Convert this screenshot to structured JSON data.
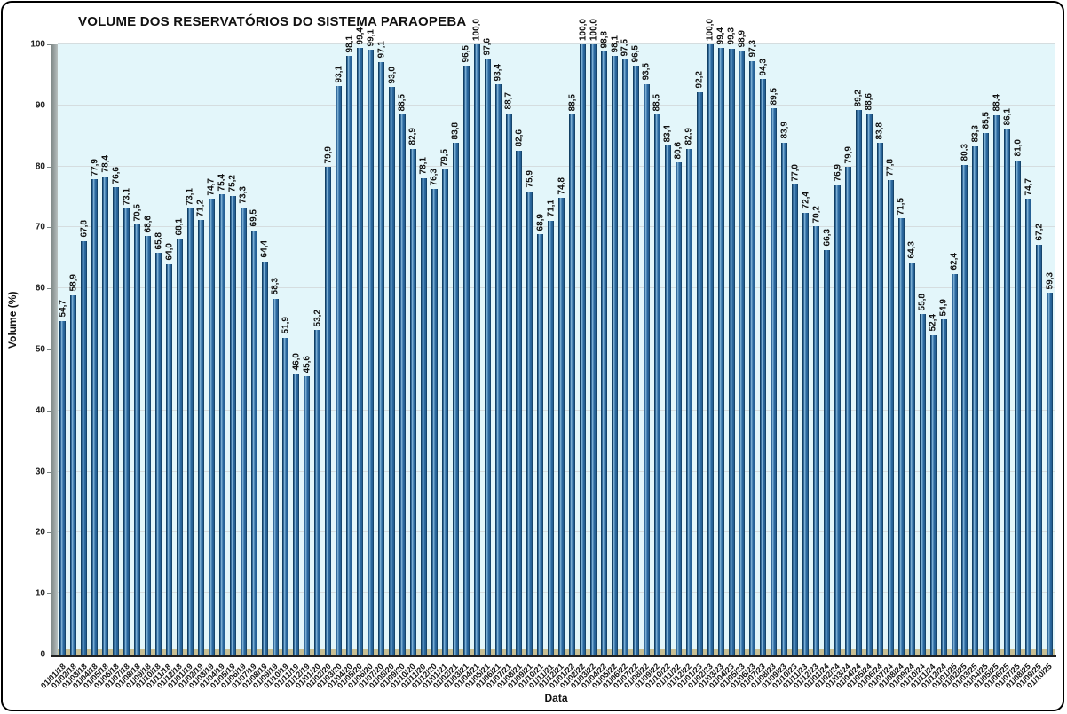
{
  "chart_data": {
    "type": "bar",
    "title": "VOLUME DOS RESERVATÓRIOS DO SISTEMA PARAOPEBA",
    "xlabel": "Data",
    "ylabel": "Volume (%)",
    "ylim": [
      0,
      100
    ],
    "ytick_step": 10,
    "grid": true,
    "decimal_separator": ",",
    "value_label_format": "one-decimal-comma",
    "bar_color": "#2E6DA4",
    "bar_edge_color": "#123F63",
    "plot_bg": "#E3F6FA",
    "outer_bg": "#FFFFFF",
    "gridline_color": "#D5DDDF",
    "wall_color": "#8E9897",
    "floor_color": "#C8BF93",
    "axis_line_color": "#1F1F1F",
    "categories": [
      "01/01/18",
      "01/02/18",
      "01/03/18",
      "01/04/18",
      "01/05/18",
      "01/06/18",
      "01/07/18",
      "01/08/18",
      "01/09/18",
      "01/10/18",
      "01/11/18",
      "01/12/18",
      "01/01/19",
      "01/02/19",
      "01/03/19",
      "01/04/19",
      "01/05/19",
      "01/06/19",
      "01/07/19",
      "01/08/19",
      "01/09/19",
      "01/10/19",
      "01/11/19",
      "01/12/19",
      "01/01/20",
      "01/02/20",
      "01/03/20",
      "01/04/20",
      "01/05/20",
      "01/06/20",
      "01/07/20",
      "01/08/20",
      "01/09/20",
      "01/10/20",
      "01/11/20",
      "01/12/20",
      "01/01/21",
      "01/02/21",
      "01/03/21",
      "01/04/21",
      "01/05/21",
      "01/06/21",
      "01/07/21",
      "01/08/21",
      "01/09/21",
      "01/10/21",
      "01/11/21",
      "01/12/21",
      "01/01/22",
      "01/02/22",
      "01/03/22",
      "01/04/22",
      "01/05/22",
      "01/06/22",
      "01/07/22",
      "01/08/22",
      "01/09/22",
      "01/10/22",
      "01/11/22",
      "01/12/22",
      "01/01/23",
      "01/02/23",
      "01/03/23",
      "01/04/23",
      "01/05/23",
      "01/06/23",
      "01/07/23",
      "01/08/23",
      "01/09/23",
      "01/10/23",
      "01/11/23",
      "01/12/23",
      "01/01/24",
      "01/02/24",
      "01/03/24",
      "01/04/24",
      "01/05/24",
      "01/06/24",
      "01/07/24",
      "01/08/24",
      "01/09/24",
      "01/10/24",
      "01/11/24",
      "01/12/24",
      "01/01/25",
      "01/02/25",
      "01/03/25",
      "01/04/25",
      "01/05/25",
      "01/06/25",
      "01/07/25",
      "01/08/25",
      "01/09/25",
      "01/10/25"
    ],
    "values": [
      54.7,
      58.9,
      67.8,
      77.9,
      78.4,
      76.6,
      73.1,
      70.5,
      68.6,
      65.8,
      64.0,
      68.1,
      73.1,
      71.2,
      74.7,
      75.4,
      75.2,
      73.3,
      69.5,
      64.4,
      58.3,
      51.9,
      46.0,
      45.6,
      53.2,
      79.9,
      93.1,
      98.1,
      99.4,
      99.1,
      97.1,
      93.0,
      88.5,
      82.9,
      78.1,
      76.3,
      79.5,
      83.8,
      96.5,
      100.0,
      97.6,
      93.4,
      88.7,
      82.6,
      75.9,
      68.9,
      71.1,
      74.8,
      88.5,
      100.0,
      100.0,
      98.8,
      98.1,
      97.5,
      96.5,
      93.5,
      88.5,
      83.4,
      80.6,
      82.9,
      92.2,
      100.0,
      99.4,
      99.3,
      98.9,
      97.3,
      94.3,
      89.5,
      83.9,
      77.0,
      72.4,
      70.2,
      66.3,
      76.9,
      79.9,
      89.2,
      88.6,
      83.8,
      77.8,
      71.5,
      64.3,
      55.8,
      52.4,
      54.9,
      62.4,
      80.3,
      83.3,
      85.5,
      88.4,
      86.1,
      81.0,
      74.7,
      67.2,
      59.3
    ]
  }
}
